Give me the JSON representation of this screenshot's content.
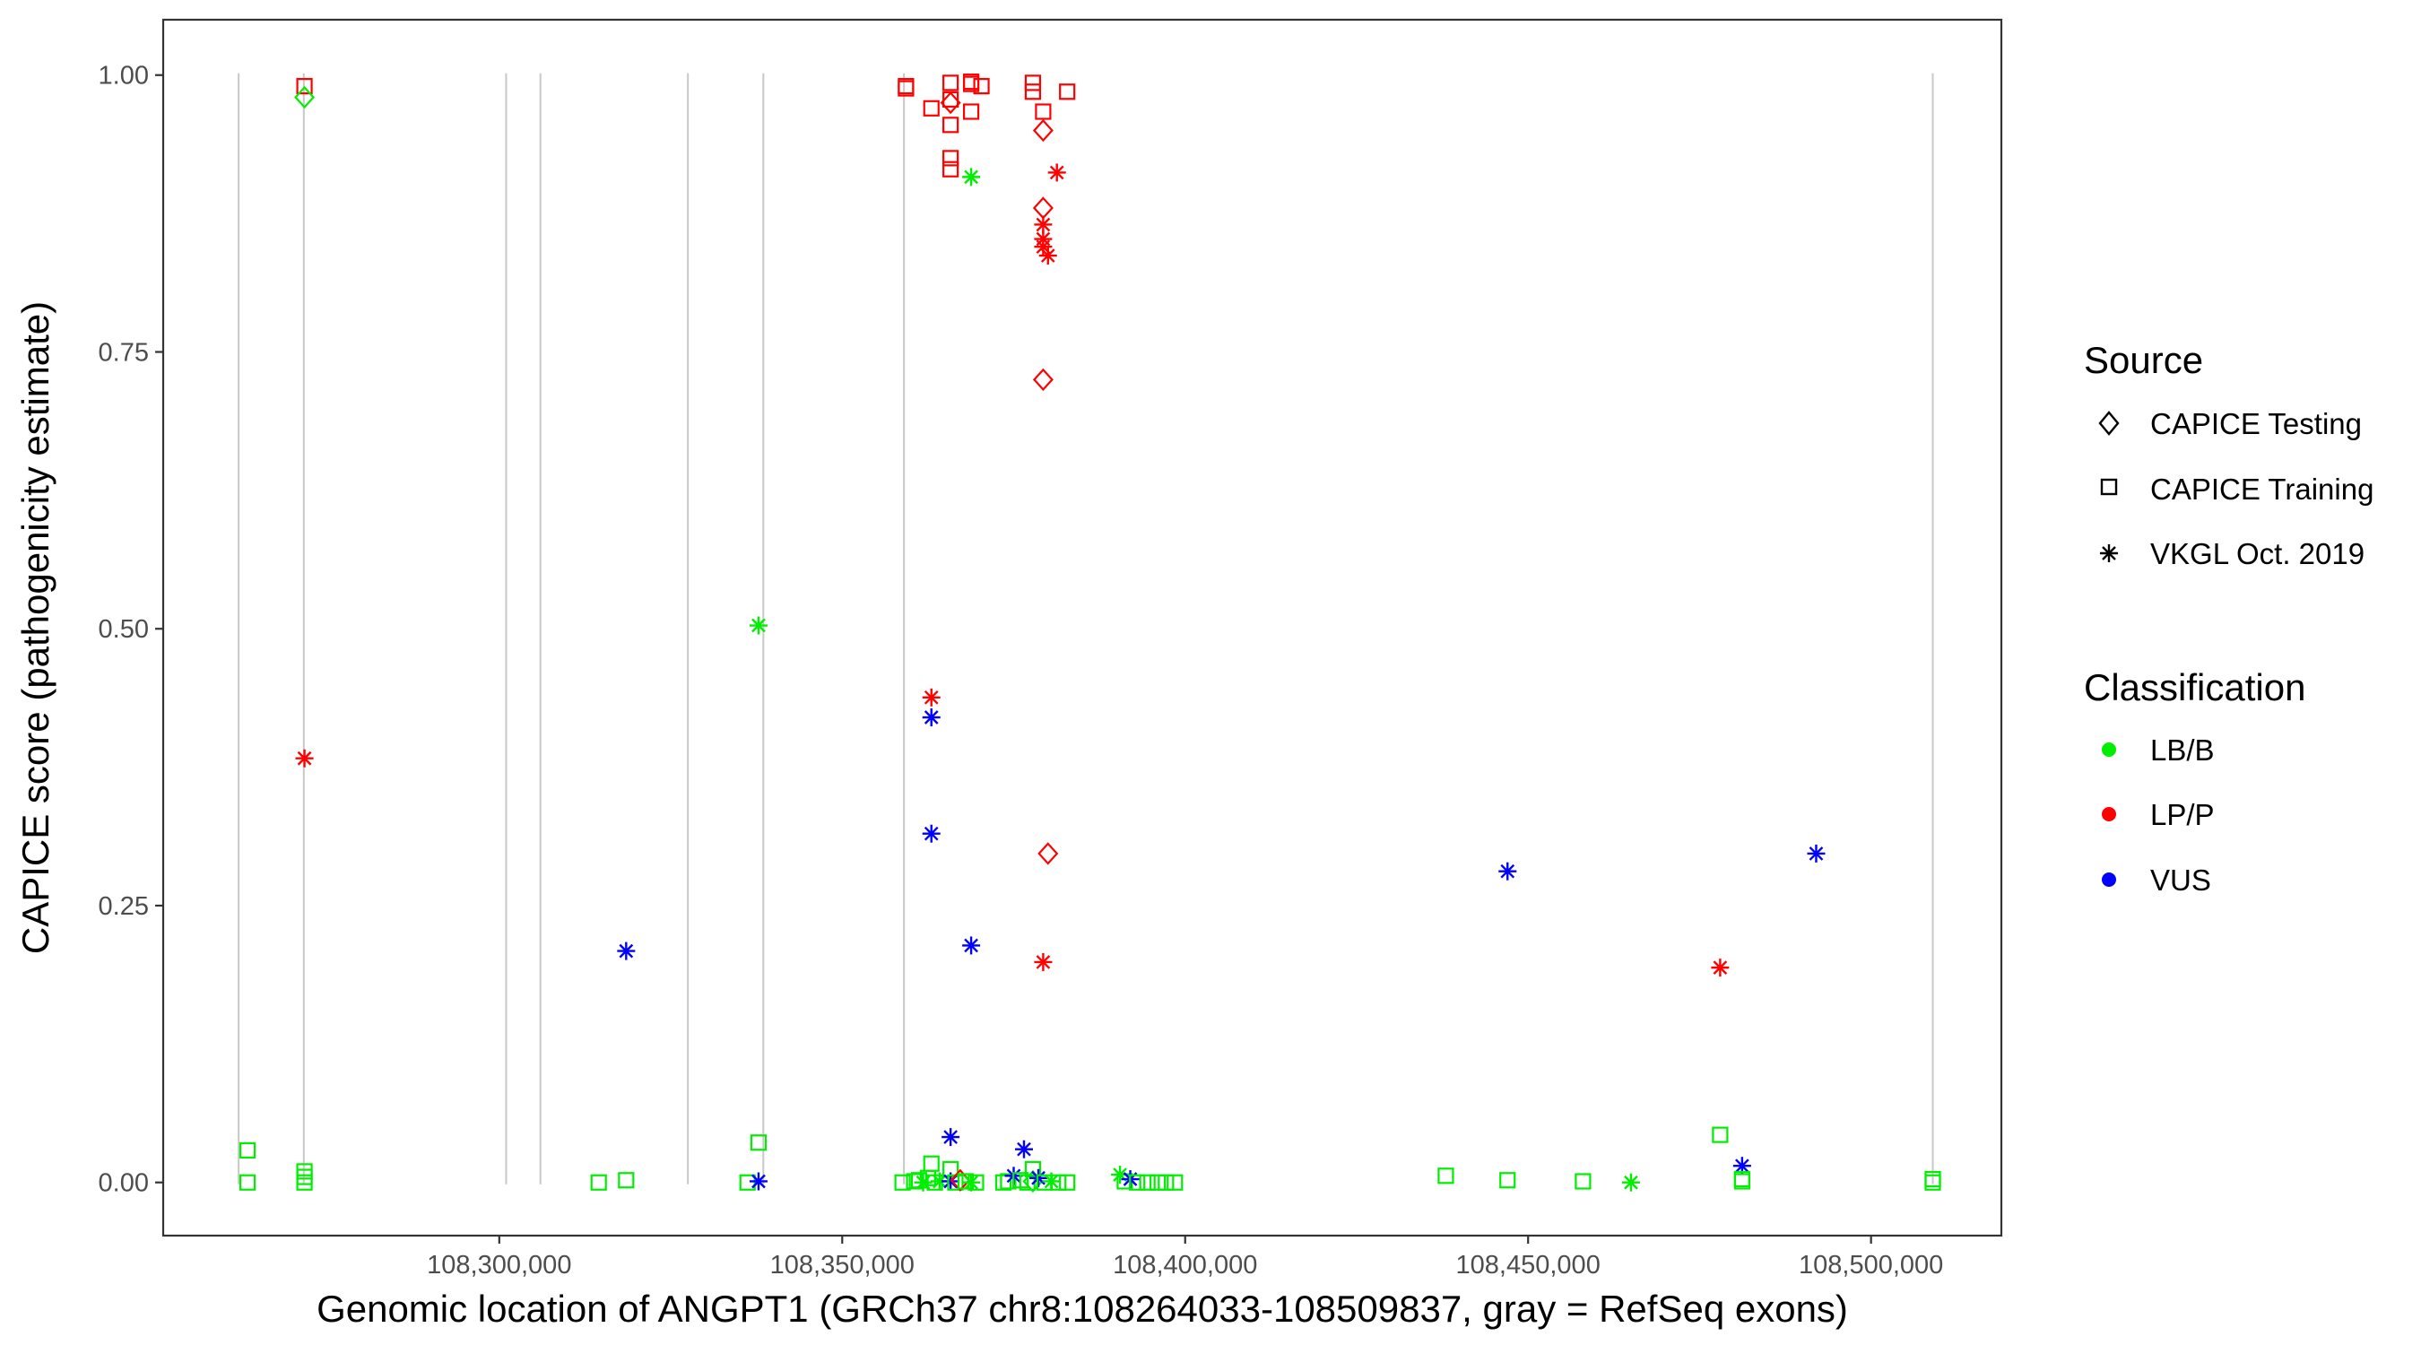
{
  "chart_data": {
    "type": "scatter",
    "title": "",
    "xlabel": "Genomic location of ANGPT1 (GRCh37 chr8:108264033-108509837, gray = RefSeq exons)",
    "ylabel": "CAPICE score (pathogenicity estimate)",
    "xlim": [
      108251000,
      108519000
    ],
    "ylim": [
      -0.048,
      1.05
    ],
    "x_ticks": [
      {
        "value": 108300000,
        "label": "108,300,000"
      },
      {
        "value": 108350000,
        "label": "108,350,000"
      },
      {
        "value": 108400000,
        "label": "108,400,000"
      },
      {
        "value": 108450000,
        "label": "108,450,000"
      },
      {
        "value": 108500000,
        "label": "108,500,000"
      }
    ],
    "y_ticks": [
      {
        "value": 0.0,
        "label": "0.00"
      },
      {
        "value": 0.25,
        "label": "0.25"
      },
      {
        "value": 0.5,
        "label": "0.50"
      },
      {
        "value": 0.75,
        "label": "0.75"
      },
      {
        "value": 1.0,
        "label": "1.00"
      }
    ],
    "grid": false,
    "exon_lines": [
      108262000,
      108271500,
      108301000,
      108306000,
      108327500,
      108338500,
      108359000,
      108509000
    ],
    "legend_position": "right",
    "legend": {
      "source_title": "Source",
      "source_items": [
        {
          "label": "CAPICE Testing",
          "shape": "diamond"
        },
        {
          "label": "CAPICE Training",
          "shape": "square"
        },
        {
          "label": "VKGL Oct. 2019",
          "shape": "star"
        }
      ],
      "classification_title": "Classification",
      "classification_items": [
        {
          "label": "LB/B",
          "color": "#00ee00"
        },
        {
          "label": "LP/P",
          "color": "#ff0000"
        },
        {
          "label": "VUS",
          "color": "#0000ff"
        }
      ]
    },
    "points": [
      {
        "x": 108271600,
        "y": 0.99,
        "shape": "square",
        "class": "LP/P"
      },
      {
        "x": 108271600,
        "y": 0.98,
        "shape": "diamond",
        "class": "LB/B"
      },
      {
        "x": 108271600,
        "y": 0.383,
        "shape": "star",
        "class": "LP/P"
      },
      {
        "x": 108263300,
        "y": 0.029,
        "shape": "square",
        "class": "LB/B"
      },
      {
        "x": 108263300,
        "y": 0.0,
        "shape": "square",
        "class": "LB/B"
      },
      {
        "x": 108271600,
        "y": 0.01,
        "shape": "square",
        "class": "LB/B"
      },
      {
        "x": 108271600,
        "y": 0.005,
        "shape": "square",
        "class": "LB/B"
      },
      {
        "x": 108271600,
        "y": 0.0,
        "shape": "square",
        "class": "LB/B"
      },
      {
        "x": 108314500,
        "y": 0.0,
        "shape": "square",
        "class": "LB/B"
      },
      {
        "x": 108318500,
        "y": 0.002,
        "shape": "square",
        "class": "LB/B"
      },
      {
        "x": 108318500,
        "y": 0.209,
        "shape": "star",
        "class": "VUS"
      },
      {
        "x": 108337800,
        "y": 0.503,
        "shape": "star",
        "class": "LB/B"
      },
      {
        "x": 108337800,
        "y": 0.036,
        "shape": "square",
        "class": "LB/B"
      },
      {
        "x": 108336200,
        "y": 0.0,
        "shape": "square",
        "class": "LB/B"
      },
      {
        "x": 108337800,
        "y": 0.001,
        "shape": "star",
        "class": "VUS"
      },
      {
        "x": 108359300,
        "y": 0.99,
        "shape": "square",
        "class": "LP/P"
      },
      {
        "x": 108359300,
        "y": 0.988,
        "shape": "square",
        "class": "LP/P"
      },
      {
        "x": 108363000,
        "y": 0.97,
        "shape": "square",
        "class": "LP/P"
      },
      {
        "x": 108365800,
        "y": 0.993,
        "shape": "square",
        "class": "LP/P"
      },
      {
        "x": 108365800,
        "y": 0.978,
        "shape": "square",
        "class": "LP/P"
      },
      {
        "x": 108365800,
        "y": 0.975,
        "shape": "diamond",
        "class": "LP/P"
      },
      {
        "x": 108365800,
        "y": 0.955,
        "shape": "square",
        "class": "LP/P"
      },
      {
        "x": 108365800,
        "y": 0.925,
        "shape": "square",
        "class": "LP/P"
      },
      {
        "x": 108365800,
        "y": 0.915,
        "shape": "square",
        "class": "LP/P"
      },
      {
        "x": 108368800,
        "y": 0.994,
        "shape": "square",
        "class": "LP/P"
      },
      {
        "x": 108368800,
        "y": 0.992,
        "shape": "square",
        "class": "LP/P"
      },
      {
        "x": 108368800,
        "y": 0.967,
        "shape": "square",
        "class": "LP/P"
      },
      {
        "x": 108370300,
        "y": 0.99,
        "shape": "square",
        "class": "LP/P"
      },
      {
        "x": 108368800,
        "y": 0.908,
        "shape": "star",
        "class": "LB/B"
      },
      {
        "x": 108377800,
        "y": 0.993,
        "shape": "square",
        "class": "LP/P"
      },
      {
        "x": 108377800,
        "y": 0.985,
        "shape": "square",
        "class": "LP/P"
      },
      {
        "x": 108379300,
        "y": 0.967,
        "shape": "square",
        "class": "LP/P"
      },
      {
        "x": 108382800,
        "y": 0.985,
        "shape": "square",
        "class": "LP/P"
      },
      {
        "x": 108379300,
        "y": 0.95,
        "shape": "diamond",
        "class": "LP/P"
      },
      {
        "x": 108381300,
        "y": 0.912,
        "shape": "star",
        "class": "LP/P"
      },
      {
        "x": 108379300,
        "y": 0.88,
        "shape": "diamond",
        "class": "LP/P"
      },
      {
        "x": 108379300,
        "y": 0.865,
        "shape": "star",
        "class": "LP/P"
      },
      {
        "x": 108379300,
        "y": 0.852,
        "shape": "star",
        "class": "LP/P"
      },
      {
        "x": 108379300,
        "y": 0.845,
        "shape": "star",
        "class": "LP/P"
      },
      {
        "x": 108380000,
        "y": 0.837,
        "shape": "star",
        "class": "LP/P"
      },
      {
        "x": 108379300,
        "y": 0.725,
        "shape": "diamond",
        "class": "LP/P"
      },
      {
        "x": 108363000,
        "y": 0.438,
        "shape": "star",
        "class": "LP/P"
      },
      {
        "x": 108363000,
        "y": 0.42,
        "shape": "star",
        "class": "VUS"
      },
      {
        "x": 108363000,
        "y": 0.315,
        "shape": "star",
        "class": "VUS"
      },
      {
        "x": 108380000,
        "y": 0.297,
        "shape": "diamond",
        "class": "LP/P"
      },
      {
        "x": 108368800,
        "y": 0.214,
        "shape": "star",
        "class": "VUS"
      },
      {
        "x": 108379300,
        "y": 0.199,
        "shape": "star",
        "class": "LP/P"
      },
      {
        "x": 108365800,
        "y": 0.041,
        "shape": "star",
        "class": "VUS"
      },
      {
        "x": 108376500,
        "y": 0.03,
        "shape": "star",
        "class": "VUS"
      },
      {
        "x": 108363000,
        "y": 0.017,
        "shape": "square",
        "class": "LB/B"
      },
      {
        "x": 108365800,
        "y": 0.012,
        "shape": "square",
        "class": "LB/B"
      },
      {
        "x": 108377800,
        "y": 0.012,
        "shape": "square",
        "class": "LB/B"
      },
      {
        "x": 108358800,
        "y": 0.0,
        "shape": "square",
        "class": "LB/B"
      },
      {
        "x": 108360500,
        "y": 0.001,
        "shape": "square",
        "class": "LB/B"
      },
      {
        "x": 108361200,
        "y": 0.002,
        "shape": "square",
        "class": "LB/B"
      },
      {
        "x": 108361800,
        "y": 0.0,
        "shape": "star",
        "class": "LB/B"
      },
      {
        "x": 108362500,
        "y": 0.004,
        "shape": "square",
        "class": "LB/B"
      },
      {
        "x": 108363500,
        "y": 0.0,
        "shape": "square",
        "class": "LB/B"
      },
      {
        "x": 108364200,
        "y": 0.001,
        "shape": "star",
        "class": "LB/B"
      },
      {
        "x": 108365800,
        "y": 0.001,
        "shape": "star",
        "class": "VUS"
      },
      {
        "x": 108366500,
        "y": 0.0,
        "shape": "square",
        "class": "LB/B"
      },
      {
        "x": 108367200,
        "y": 0.002,
        "shape": "diamond",
        "class": "LP/P"
      },
      {
        "x": 108368000,
        "y": 0.001,
        "shape": "square",
        "class": "LB/B"
      },
      {
        "x": 108368800,
        "y": 0.0,
        "shape": "star",
        "class": "LB/B"
      },
      {
        "x": 108369500,
        "y": 0.0,
        "shape": "square",
        "class": "LB/B"
      },
      {
        "x": 108373500,
        "y": 0.0,
        "shape": "square",
        "class": "LB/B"
      },
      {
        "x": 108374200,
        "y": 0.001,
        "shape": "square",
        "class": "LB/B"
      },
      {
        "x": 108375000,
        "y": 0.006,
        "shape": "star",
        "class": "VUS"
      },
      {
        "x": 108376000,
        "y": 0.002,
        "shape": "square",
        "class": "LB/B"
      },
      {
        "x": 108377000,
        "y": 0.0,
        "shape": "square",
        "class": "LB/B"
      },
      {
        "x": 108377800,
        "y": 0.001,
        "shape": "diamond",
        "class": "LB/B"
      },
      {
        "x": 108378600,
        "y": 0.004,
        "shape": "star",
        "class": "VUS"
      },
      {
        "x": 108379500,
        "y": 0.0,
        "shape": "square",
        "class": "LB/B"
      },
      {
        "x": 108380500,
        "y": 0.001,
        "shape": "star",
        "class": "LB/B"
      },
      {
        "x": 108381500,
        "y": 0.0,
        "shape": "square",
        "class": "LB/B"
      },
      {
        "x": 108382800,
        "y": 0.0,
        "shape": "square",
        "class": "LB/B"
      },
      {
        "x": 108390500,
        "y": 0.007,
        "shape": "star",
        "class": "LB/B"
      },
      {
        "x": 108391200,
        "y": 0.001,
        "shape": "square",
        "class": "LB/B"
      },
      {
        "x": 108392000,
        "y": 0.003,
        "shape": "star",
        "class": "VUS"
      },
      {
        "x": 108393000,
        "y": 0.0,
        "shape": "square",
        "class": "LB/B"
      },
      {
        "x": 108394500,
        "y": 0.0,
        "shape": "square",
        "class": "LB/B"
      },
      {
        "x": 108396000,
        "y": 0.0,
        "shape": "square",
        "class": "LB/B"
      },
      {
        "x": 108397200,
        "y": 0.0,
        "shape": "square",
        "class": "LB/B"
      },
      {
        "x": 108398500,
        "y": 0.0,
        "shape": "square",
        "class": "LB/B"
      },
      {
        "x": 108447000,
        "y": 0.281,
        "shape": "star",
        "class": "VUS"
      },
      {
        "x": 108438000,
        "y": 0.006,
        "shape": "square",
        "class": "LB/B"
      },
      {
        "x": 108447000,
        "y": 0.002,
        "shape": "square",
        "class": "LB/B"
      },
      {
        "x": 108458000,
        "y": 0.001,
        "shape": "square",
        "class": "LB/B"
      },
      {
        "x": 108465000,
        "y": 0.0,
        "shape": "star",
        "class": "LB/B"
      },
      {
        "x": 108478000,
        "y": 0.043,
        "shape": "square",
        "class": "LB/B"
      },
      {
        "x": 108478000,
        "y": 0.194,
        "shape": "star",
        "class": "LP/P"
      },
      {
        "x": 108481200,
        "y": 0.015,
        "shape": "star",
        "class": "VUS"
      },
      {
        "x": 108481200,
        "y": 0.003,
        "shape": "square",
        "class": "LB/B"
      },
      {
        "x": 108481200,
        "y": 0.001,
        "shape": "square",
        "class": "LB/B"
      },
      {
        "x": 108492000,
        "y": 0.297,
        "shape": "star",
        "class": "VUS"
      },
      {
        "x": 108509000,
        "y": 0.003,
        "shape": "square",
        "class": "LB/B"
      },
      {
        "x": 108509000,
        "y": 0.0,
        "shape": "square",
        "class": "LB/B"
      }
    ]
  }
}
